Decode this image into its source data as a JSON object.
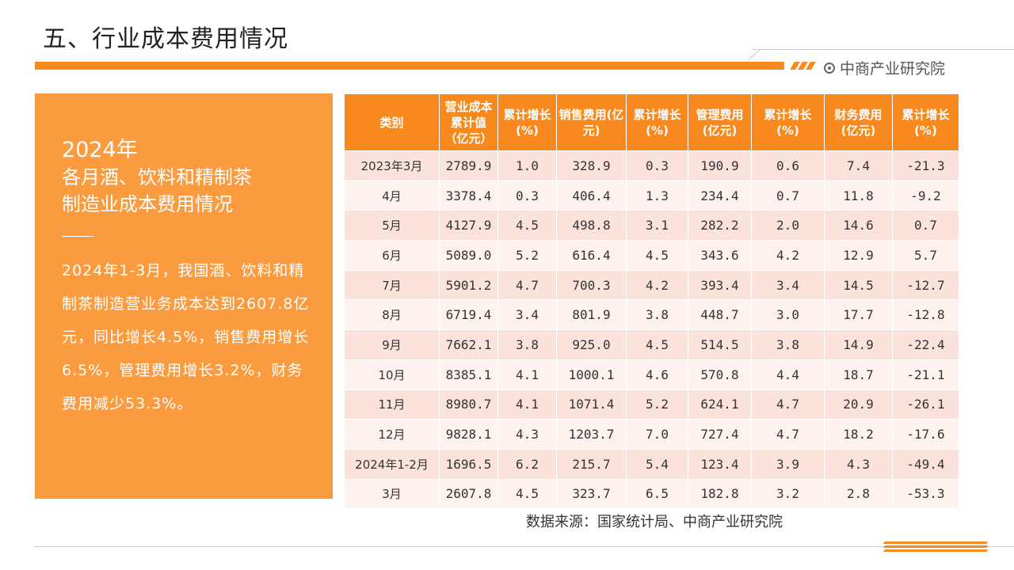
{
  "page": {
    "title": "五、行业成本费用情况",
    "brand": "中商产业研究院",
    "accent_color": "#f7891f",
    "panel_color": "#f99b3e"
  },
  "summary": {
    "year": "2024年",
    "heading_line1": "各月酒、饮料和精制茶",
    "heading_line2": "制造业成本费用情况",
    "body": "2024年1-3月，我国酒、饮料和精制茶制造营业务成本达到2607.8亿元，同比增长4.5%，销售费用增长6.5%，管理费用增长3.2%，财务费用减少53.3%。"
  },
  "table": {
    "headers": [
      "类别",
      "营业成本累计值（亿元）",
      "累计增长(%)",
      "销售费用(亿元)",
      "累计增长(%)",
      "管理费用(亿元)",
      "累计增长(%)",
      "财务费用(亿元)",
      "累计增长(%)"
    ],
    "rows": [
      [
        "2023年3月",
        "2789.9",
        "1.0",
        "328.9",
        "0.3",
        "190.9",
        "0.6",
        "7.4",
        "-21.3"
      ],
      [
        "4月",
        "3378.4",
        "0.3",
        "406.4",
        "1.3",
        "234.4",
        "0.7",
        "11.8",
        "-9.2"
      ],
      [
        "5月",
        "4127.9",
        "4.5",
        "498.8",
        "3.1",
        "282.2",
        "2.0",
        "14.6",
        "0.7"
      ],
      [
        "6月",
        "5089.0",
        "5.2",
        "616.4",
        "4.5",
        "343.6",
        "4.2",
        "12.9",
        "5.7"
      ],
      [
        "7月",
        "5901.2",
        "4.7",
        "700.3",
        "4.2",
        "393.4",
        "3.4",
        "14.5",
        "-12.7"
      ],
      [
        "8月",
        "6719.4",
        "3.4",
        "801.9",
        "3.8",
        "448.7",
        "3.0",
        "17.7",
        "-12.8"
      ],
      [
        "9月",
        "7662.1",
        "3.8",
        "925.0",
        "4.5",
        "514.5",
        "3.8",
        "14.9",
        "-22.4"
      ],
      [
        "10月",
        "8385.1",
        "4.1",
        "1000.1",
        "4.6",
        "570.8",
        "4.4",
        "18.7",
        "-21.1"
      ],
      [
        "11月",
        "8980.7",
        "4.1",
        "1071.4",
        "5.2",
        "624.1",
        "4.7",
        "20.9",
        "-26.1"
      ],
      [
        "12月",
        "9828.1",
        "4.3",
        "1203.7",
        "7.0",
        "727.4",
        "4.7",
        "18.2",
        "-17.6"
      ],
      [
        "2024年1-2月",
        "1696.5",
        "6.2",
        "215.7",
        "5.4",
        "123.4",
        "3.9",
        "4.3",
        "-49.4"
      ],
      [
        "3月",
        "2607.8",
        "4.5",
        "323.7",
        "6.5",
        "182.8",
        "3.2",
        "2.8",
        "-53.3"
      ]
    ]
  },
  "source": "数据来源：国家统计局、中商产业研究院"
}
